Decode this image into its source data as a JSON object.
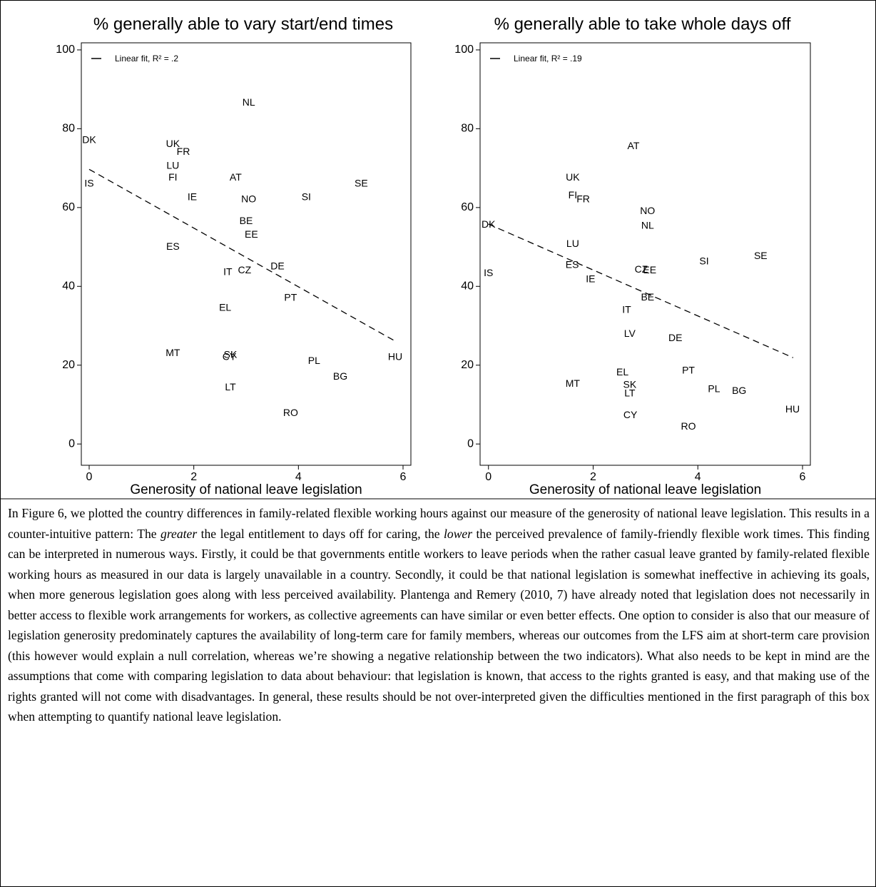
{
  "chart_data": [
    {
      "type": "scatter",
      "title": "% generally able to vary start/end times",
      "x_label": "Generosity of national leave legislation",
      "labels": [
        "DK",
        "IS",
        "UK",
        "FR",
        "LU",
        "FI",
        "IE",
        "NL",
        "AT",
        "NO",
        "SI",
        "SE",
        "BE",
        "EE",
        "ES",
        "DE",
        "IT",
        "CZ",
        "PT",
        "EL",
        "MT",
        "SK",
        "CY",
        "PL",
        "HU",
        "BG",
        "LT",
        "RO"
      ],
      "x": [
        0,
        0,
        1.6,
        1.8,
        1.6,
        1.6,
        1.97,
        3.05,
        2.8,
        3.05,
        4.15,
        5.2,
        3.0,
        3.1,
        1.6,
        3.6,
        2.65,
        2.97,
        3.85,
        2.6,
        1.6,
        2.7,
        2.68,
        4.3,
        5.85,
        4.8,
        2.7,
        3.85
      ],
      "values": [
        77,
        66,
        76,
        74,
        70.5,
        67.5,
        62.5,
        86.5,
        67.5,
        62,
        62.5,
        66,
        56.5,
        53,
        50,
        45,
        43.5,
        44,
        37,
        34.5,
        23,
        22.5,
        22,
        21,
        22,
        17,
        14.3,
        7.8
      ],
      "fit": {
        "name": "Linear fit, R² = .2",
        "x": [
          0,
          5.85
        ],
        "values": [
          69.7,
          26.1
        ]
      },
      "xlim": [
        -0.15,
        6.15
      ],
      "ylim": [
        -5.4,
        101.8
      ],
      "xticks": [
        0,
        2,
        4,
        6
      ],
      "yticks": [
        0,
        20,
        40,
        60,
        80,
        100
      ]
    },
    {
      "type": "scatter",
      "title": "% generally able to take whole days off",
      "x_label": "Generosity of national leave legislation",
      "labels": [
        "AT",
        "UK",
        "FI",
        "FR",
        "NO",
        "NL",
        "DK",
        "LU",
        "ES",
        "IS",
        "IE",
        "CZ",
        "EE",
        "SI",
        "SE",
        "BE",
        "IT",
        "LV",
        "DE",
        "EL",
        "PT",
        "MT",
        "SK",
        "LT",
        "PL",
        "BG",
        "HU",
        "CY",
        "RO"
      ],
      "x": [
        2.77,
        1.61,
        1.61,
        1.81,
        3.04,
        3.04,
        0,
        1.61,
        1.6,
        0,
        1.95,
        2.92,
        3.08,
        4.12,
        5.2,
        3.04,
        2.64,
        2.7,
        3.57,
        2.56,
        3.82,
        1.61,
        2.7,
        2.7,
        4.31,
        4.79,
        5.81,
        2.71,
        3.82
      ],
      "values": [
        75.5,
        67.5,
        63,
        62,
        59,
        55.3,
        55.6,
        50.7,
        45.3,
        43.3,
        41.7,
        44.2,
        44,
        46.2,
        47.6,
        37.1,
        33.9,
        27.9,
        26.8,
        18.1,
        18.5,
        15.2,
        14.9,
        12.7,
        13.8,
        13.4,
        8.7,
        7.2,
        4.3
      ],
      "fit": {
        "name": "Linear fit, R² = .19",
        "x": [
          0,
          5.82
        ],
        "values": [
          55.8,
          21.9
        ]
      },
      "xlim": [
        -0.16,
        6.15
      ],
      "ylim": [
        -5.4,
        101.8
      ],
      "xticks": [
        0,
        2,
        4,
        6
      ],
      "yticks": [
        0,
        20,
        40,
        60,
        80,
        100
      ]
    }
  ],
  "body": {
    "paragraph": [
      {
        "text": "In Figure 6, we plotted the country differences in family-related flexible working hours against our measure of the generosity of national leave legislation. This results in a counter-intuitive pattern: The "
      },
      {
        "text": "greater",
        "italic": true
      },
      {
        "text": " the legal entitlement to days off for caring, the "
      },
      {
        "text": "lower",
        "italic": true
      },
      {
        "text": " the perceived prevalence of family-friendly flexible work times. This finding can be interpreted in numerous ways. Firstly, it could be that governments entitle workers to leave periods when the rather casual leave granted by family-related flexible working hours as measured in our data is largely unavailable in a country. Secondly, it could be that national legislation is somewhat ineffective in achieving its goals, when more generous legislation goes along with less perceived availability. Plantenga and Remery (2010, 7) have already noted that legislation does not necessarily in better access to flexible work arrangements for workers, as collective agreements can have similar or even better effects. One option to consider is also that our measure of legislation generosity predominately captures the availability of long-term care for family members, whereas our outcomes from the LFS aim at short-term care provision (this however would explain a null correlation, whereas we’re showing a negative relationship between the two indicators). What also needs to be kept in mind are the assumptions that come with comparing legislation to data about behaviour: that legislation is known, that access to the rights granted is easy, and that making use of the rights granted will not come with disadvantages. In general, these results should be not over-interpreted given the difficulties mentioned in the first paragraph of this box when attempting to quantify national leave legislation."
      }
    ]
  }
}
